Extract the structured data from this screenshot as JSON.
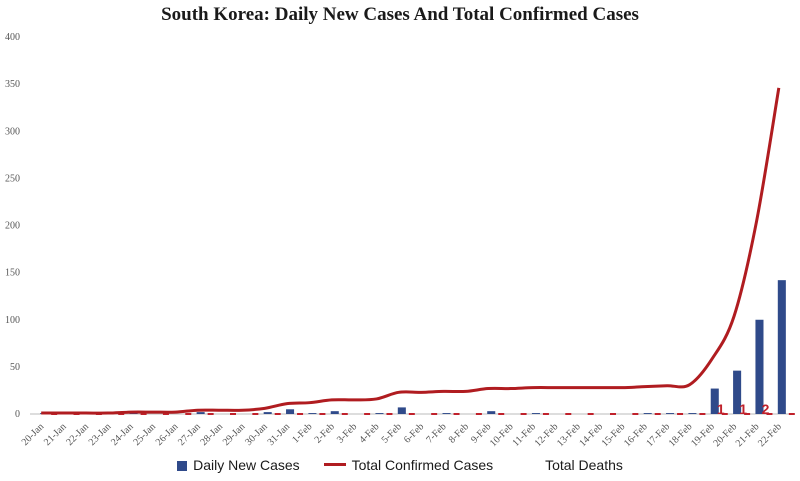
{
  "chart_data": {
    "type": "bar",
    "title": "South Korea: Daily New Cases And Total Confirmed Cases",
    "xlabel": "",
    "ylabel": "",
    "ylim": [
      0,
      400
    ],
    "yticks": [
      0,
      50,
      100,
      150,
      200,
      250,
      300,
      350,
      400
    ],
    "grid": false,
    "legend_position": "bottom",
    "categories": [
      "20-Jan",
      "21-Jan",
      "22-Jan",
      "23-Jan",
      "24-Jan",
      "25-Jan",
      "26-Jan",
      "27-Jan",
      "28-Jan",
      "29-Jan",
      "30-Jan",
      "31-Jan",
      "1-Feb",
      "2-Feb",
      "3-Feb",
      "4-Feb",
      "5-Feb",
      "6-Feb",
      "7-Feb",
      "8-Feb",
      "9-Feb",
      "10-Feb",
      "11-Feb",
      "12-Feb",
      "13-Feb",
      "14-Feb",
      "15-Feb",
      "16-Feb",
      "17-Feb",
      "18-Feb",
      "19-Feb",
      "20-Feb",
      "21-Feb",
      "22-Feb"
    ],
    "series": [
      {
        "name": "Daily New Cases",
        "type": "bar",
        "color": "#2f4a8a",
        "values": [
          1,
          0,
          0,
          0,
          1,
          0,
          0,
          2,
          0,
          0,
          2,
          5,
          1,
          3,
          0,
          1,
          7,
          0,
          1,
          0,
          3,
          0,
          1,
          0,
          0,
          0,
          0,
          1,
          1,
          1,
          27,
          46,
          100,
          142
        ]
      },
      {
        "name": "Total Confirmed Cases",
        "type": "line",
        "color": "#b01c20",
        "values": [
          1,
          1,
          1,
          1,
          2,
          2,
          2,
          4,
          4,
          4,
          6,
          11,
          12,
          15,
          15,
          16,
          23,
          23,
          24,
          24,
          27,
          27,
          28,
          28,
          28,
          28,
          28,
          29,
          30,
          31,
          58,
          104,
          204,
          346
        ]
      },
      {
        "name": "Total Deaths",
        "type": "line",
        "color": "#c0212b",
        "values": [
          0,
          0,
          0,
          0,
          0,
          0,
          0,
          0,
          0,
          0,
          0,
          0,
          0,
          0,
          0,
          0,
          0,
          0,
          0,
          0,
          0,
          0,
          0,
          0,
          0,
          0,
          0,
          0,
          0,
          0,
          1,
          1,
          2,
          2
        ],
        "data_labels": [
          {
            "category": "19-Feb",
            "text": "1"
          },
          {
            "category": "20-Feb",
            "text": "1"
          },
          {
            "category": "21-Feb",
            "text": "2"
          }
        ]
      }
    ]
  }
}
